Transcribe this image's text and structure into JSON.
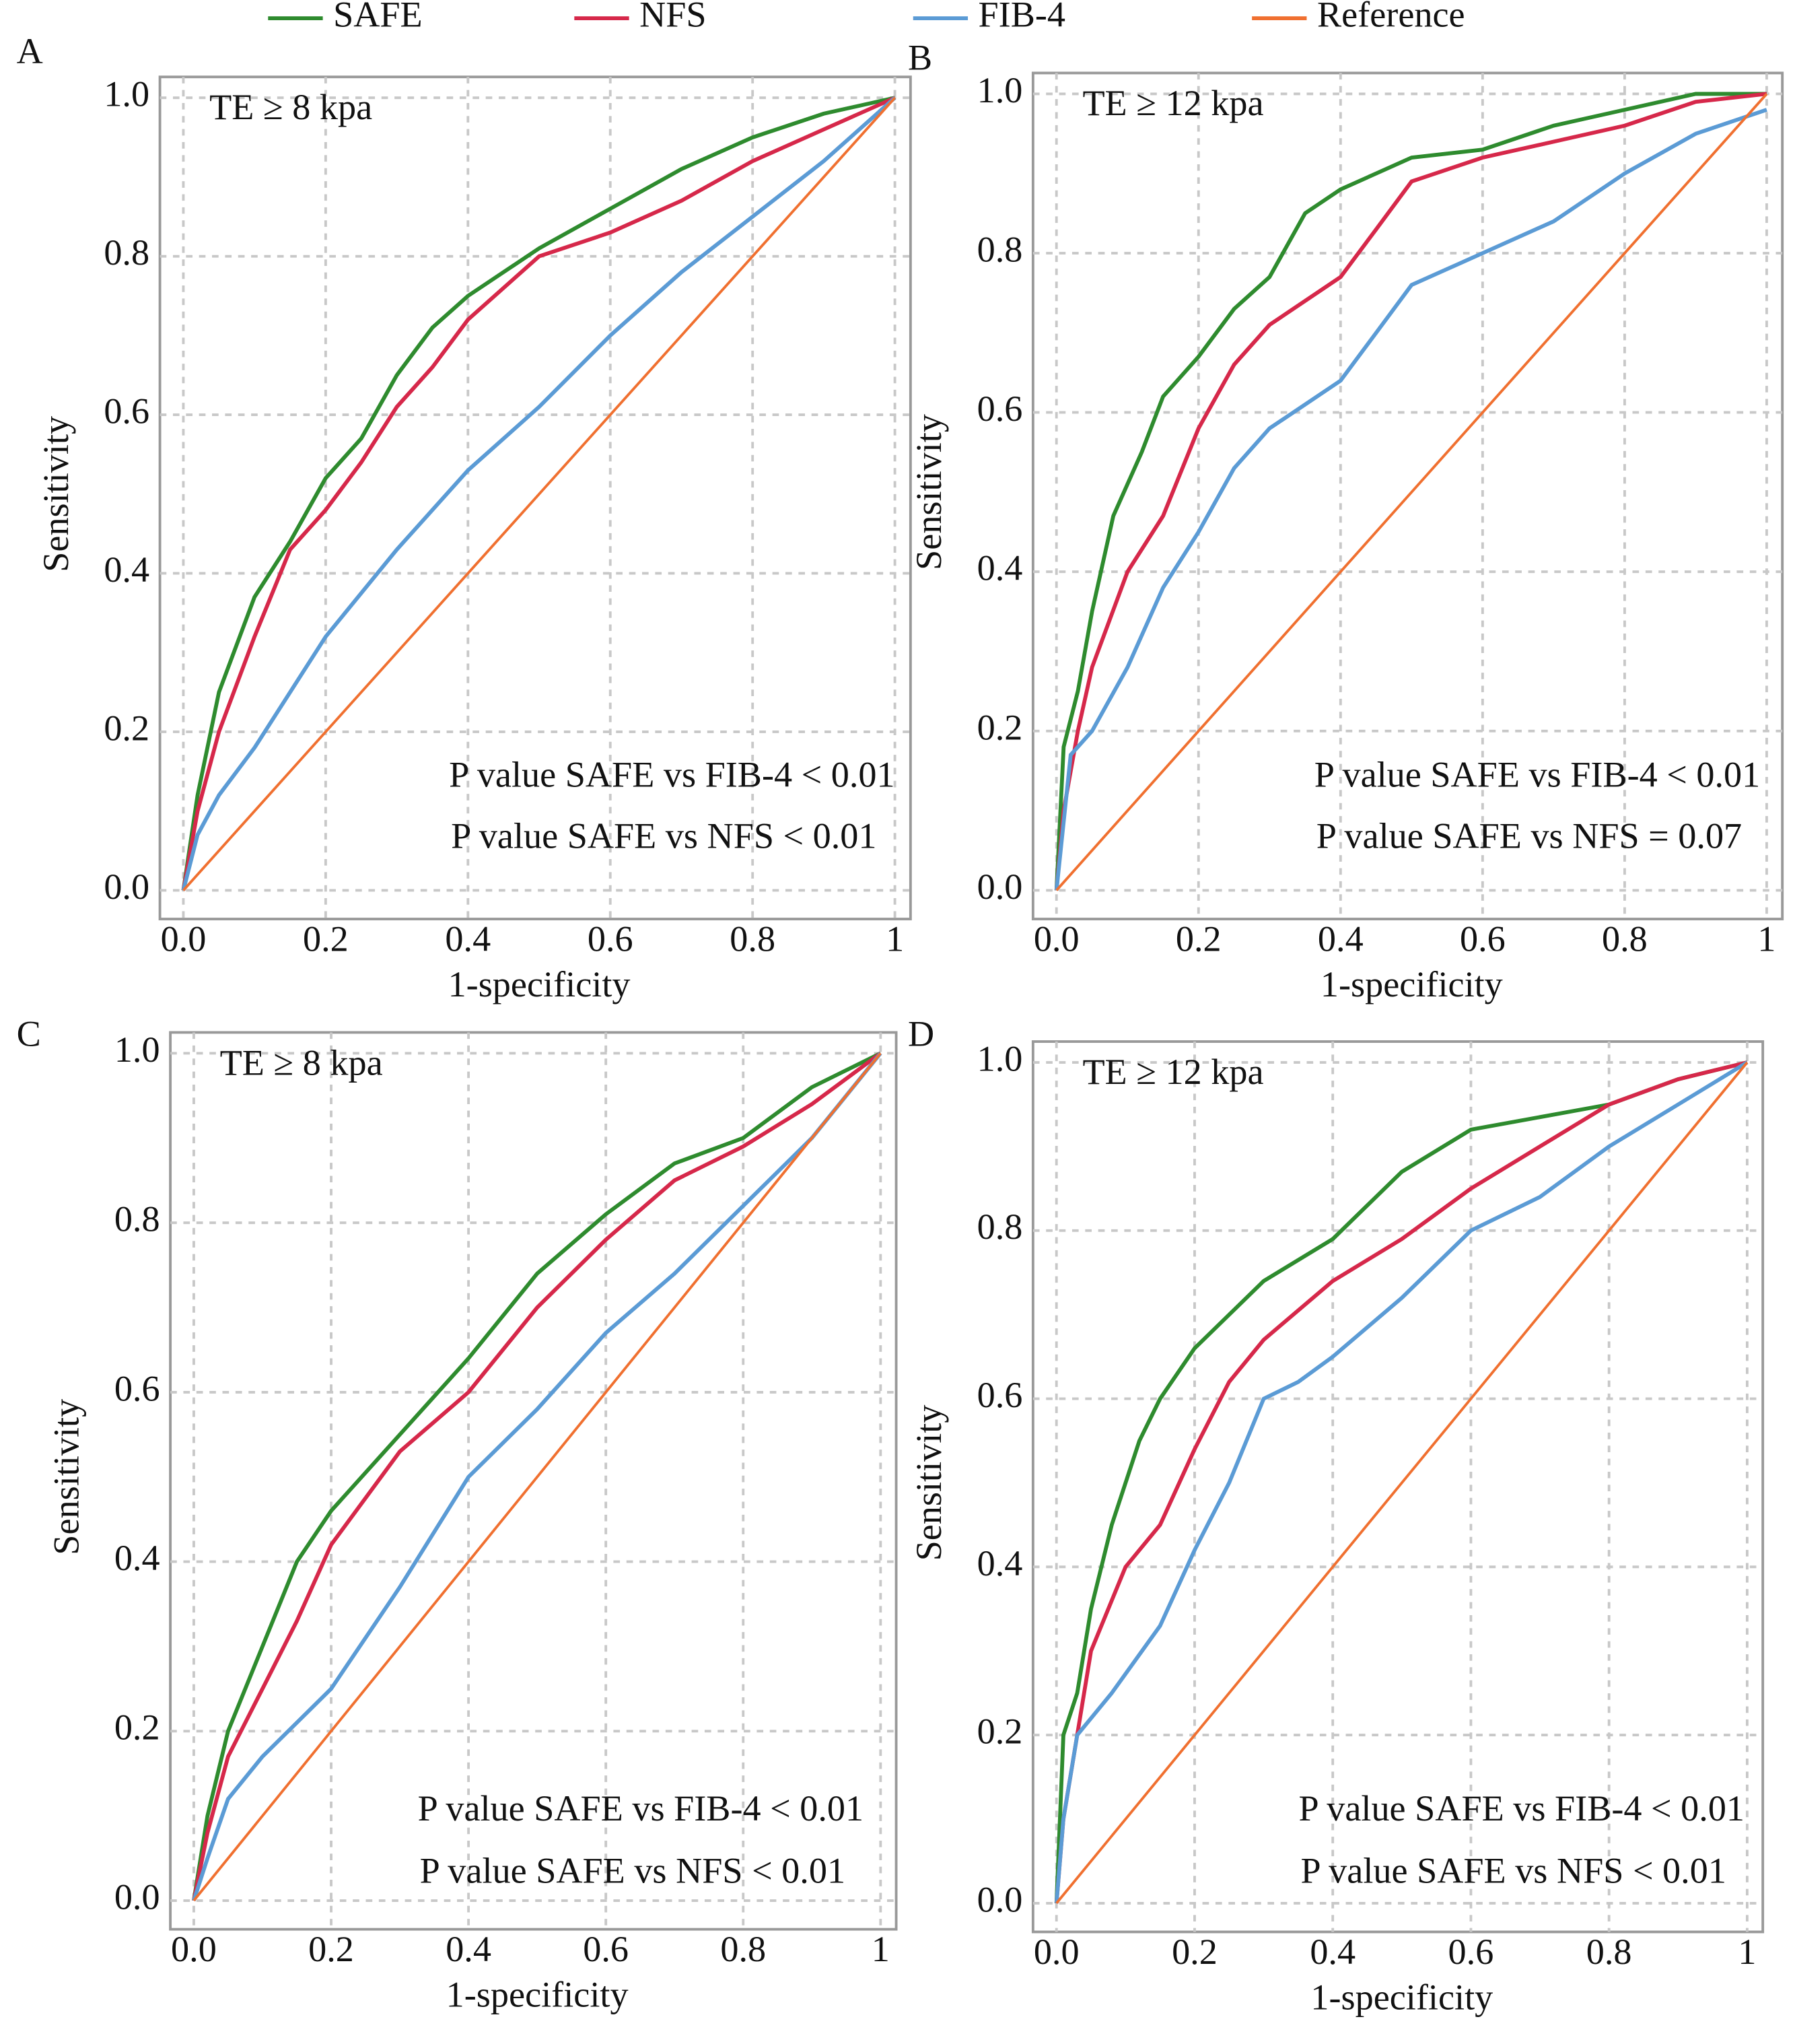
{
  "legend_chart": 0,
  "chart_data": [
    {
      "type": "line",
      "panel_label": "A",
      "x_label": "1-specificity",
      "y_label": "Sensitivity",
      "annotations": [
        "TE ≥ 8 kpa",
        "P value SAFE vs FIB-4 < 0.01",
        "P value SAFE vs NFS < 0.01"
      ],
      "xlim": [
        0,
        1
      ],
      "ylim": [
        0,
        1
      ],
      "grid": true,
      "xticks": [
        {
          "value": 0,
          "label": "0.0"
        },
        0.2,
        0.4,
        0.6,
        0.8,
        1
      ],
      "yticks": [
        {
          "value": 0,
          "label": "0.0"
        },
        0.2,
        0.4,
        0.6,
        0.8,
        {
          "value": 1,
          "label": "1.0"
        }
      ],
      "series": [
        {
          "name": "SAFE",
          "color": "#2e8b2e",
          "x": [
            0,
            0.02,
            0.05,
            0.1,
            0.15,
            0.2,
            0.25,
            0.3,
            0.35,
            0.4,
            0.5,
            0.6,
            0.7,
            0.8,
            0.9,
            1
          ],
          "values": [
            0,
            0.12,
            0.25,
            0.37,
            0.44,
            0.52,
            0.57,
            0.65,
            0.71,
            0.75,
            0.81,
            0.86,
            0.91,
            0.95,
            0.98,
            1
          ]
        },
        {
          "name": "NFS",
          "color": "#d6284a",
          "x": [
            0,
            0.02,
            0.05,
            0.1,
            0.15,
            0.2,
            0.25,
            0.3,
            0.35,
            0.4,
            0.5,
            0.6,
            0.7,
            0.8,
            0.9,
            1
          ],
          "values": [
            0,
            0.1,
            0.2,
            0.32,
            0.43,
            0.48,
            0.54,
            0.61,
            0.66,
            0.72,
            0.8,
            0.83,
            0.87,
            0.92,
            0.96,
            1
          ]
        },
        {
          "name": "FIB-4",
          "color": "#5b9bd5",
          "x": [
            0,
            0.02,
            0.05,
            0.1,
            0.15,
            0.2,
            0.3,
            0.4,
            0.5,
            0.6,
            0.7,
            0.8,
            0.9,
            1
          ],
          "values": [
            0,
            0.07,
            0.12,
            0.18,
            0.25,
            0.32,
            0.43,
            0.53,
            0.61,
            0.7,
            0.78,
            0.85,
            0.92,
            1
          ]
        },
        {
          "name": "Reference",
          "color": "#f07030",
          "x": [
            0,
            1
          ],
          "values": [
            0,
            1
          ]
        }
      ]
    },
    {
      "type": "line",
      "panel_label": "B",
      "x_label": "1-specificity",
      "y_label": "Sensitivity",
      "annotations": [
        "TE ≥ 12 kpa",
        "P value SAFE vs FIB-4 < 0.01",
        "P value SAFE vs NFS = 0.07"
      ],
      "xlim": [
        0,
        1
      ],
      "ylim": [
        0,
        1
      ],
      "grid": true,
      "xticks": [
        {
          "value": 0,
          "label": "0.0"
        },
        0.2,
        0.4,
        0.6,
        0.8,
        1
      ],
      "yticks": [
        {
          "value": 0,
          "label": "0.0"
        },
        0.2,
        0.4,
        0.6,
        0.8,
        {
          "value": 1,
          "label": "1.0"
        }
      ],
      "series": [
        {
          "name": "SAFE",
          "color": "#2e8b2e",
          "x": [
            0,
            0.01,
            0.03,
            0.05,
            0.08,
            0.12,
            0.15,
            0.2,
            0.25,
            0.3,
            0.35,
            0.4,
            0.5,
            0.6,
            0.7,
            0.8,
            0.9,
            1
          ],
          "values": [
            0,
            0.18,
            0.25,
            0.35,
            0.47,
            0.55,
            0.62,
            0.67,
            0.73,
            0.77,
            0.85,
            0.88,
            0.92,
            0.93,
            0.96,
            0.98,
            1,
            1
          ]
        },
        {
          "name": "NFS",
          "color": "#d6284a",
          "x": [
            0,
            0.01,
            0.03,
            0.05,
            0.1,
            0.15,
            0.2,
            0.25,
            0.3,
            0.4,
            0.45,
            0.5,
            0.6,
            0.7,
            0.8,
            0.9,
            1
          ],
          "values": [
            0,
            0.1,
            0.2,
            0.28,
            0.4,
            0.47,
            0.58,
            0.66,
            0.71,
            0.77,
            0.83,
            0.89,
            0.92,
            0.94,
            0.96,
            0.99,
            1
          ]
        },
        {
          "name": "FIB-4",
          "color": "#5b9bd5",
          "x": [
            0,
            0.02,
            0.05,
            0.1,
            0.15,
            0.2,
            0.25,
            0.3,
            0.35,
            0.4,
            0.45,
            0.5,
            0.6,
            0.7,
            0.8,
            0.9,
            1
          ],
          "values": [
            0,
            0.17,
            0.2,
            0.28,
            0.38,
            0.45,
            0.53,
            0.58,
            0.61,
            0.64,
            0.7,
            0.76,
            0.8,
            0.84,
            0.9,
            0.95,
            0.98
          ]
        },
        {
          "name": "Reference",
          "color": "#f07030",
          "x": [
            0,
            1
          ],
          "values": [
            0,
            1
          ]
        }
      ]
    },
    {
      "type": "line",
      "panel_label": "C",
      "x_label": "1-specificity",
      "y_label": "Sensitivity",
      "annotations": [
        "TE ≥ 8 kpa",
        "P value SAFE vs FIB-4 < 0.01",
        "P value SAFE vs NFS < 0.01"
      ],
      "xlim": [
        0,
        1
      ],
      "ylim": [
        0,
        1
      ],
      "grid": true,
      "xticks": [
        {
          "value": 0,
          "label": "0.0"
        },
        0.2,
        0.4,
        0.6,
        0.8,
        1
      ],
      "yticks": [
        {
          "value": 0,
          "label": "0.0"
        },
        0.2,
        0.4,
        0.6,
        0.8,
        {
          "value": 1,
          "label": "1.0"
        }
      ],
      "series": [
        {
          "name": "SAFE",
          "color": "#2e8b2e",
          "x": [
            0,
            0.02,
            0.05,
            0.1,
            0.15,
            0.2,
            0.3,
            0.4,
            0.5,
            0.6,
            0.7,
            0.8,
            0.9,
            1
          ],
          "values": [
            0,
            0.1,
            0.2,
            0.3,
            0.4,
            0.46,
            0.55,
            0.64,
            0.74,
            0.81,
            0.87,
            0.9,
            0.96,
            1
          ]
        },
        {
          "name": "NFS",
          "color": "#d6284a",
          "x": [
            0,
            0.02,
            0.05,
            0.1,
            0.15,
            0.2,
            0.3,
            0.4,
            0.5,
            0.6,
            0.7,
            0.8,
            0.9,
            1
          ],
          "values": [
            0,
            0.08,
            0.17,
            0.25,
            0.33,
            0.42,
            0.53,
            0.6,
            0.7,
            0.78,
            0.85,
            0.89,
            0.94,
            1
          ]
        },
        {
          "name": "FIB-4",
          "color": "#5b9bd5",
          "x": [
            0,
            0.02,
            0.05,
            0.1,
            0.2,
            0.3,
            0.4,
            0.5,
            0.6,
            0.7,
            0.8,
            0.9,
            1
          ],
          "values": [
            0,
            0.05,
            0.12,
            0.17,
            0.25,
            0.37,
            0.5,
            0.58,
            0.67,
            0.74,
            0.82,
            0.9,
            1
          ]
        },
        {
          "name": "Reference",
          "color": "#f07030",
          "x": [
            0,
            1
          ],
          "values": [
            0,
            1
          ]
        }
      ]
    },
    {
      "type": "line",
      "panel_label": "D",
      "x_label": "1-specificity",
      "y_label": "Sensitivity",
      "annotations": [
        "TE ≥ 12 kpa",
        "P value SAFE vs FIB-4 < 0.01",
        "P value SAFE vs NFS < 0.01"
      ],
      "xlim": [
        0,
        1
      ],
      "ylim": [
        0,
        1
      ],
      "grid": true,
      "xticks": [
        {
          "value": 0,
          "label": "0.0"
        },
        0.2,
        0.4,
        0.6,
        0.8,
        1
      ],
      "yticks": [
        {
          "value": 0,
          "label": "0.0"
        },
        0.2,
        0.4,
        0.6,
        0.8,
        {
          "value": 1,
          "label": "1.0"
        }
      ],
      "series": [
        {
          "name": "SAFE",
          "color": "#2e8b2e",
          "x": [
            0,
            0.01,
            0.03,
            0.05,
            0.08,
            0.12,
            0.15,
            0.2,
            0.25,
            0.3,
            0.4,
            0.5,
            0.6,
            0.8,
            0.9,
            1
          ],
          "values": [
            0,
            0.2,
            0.25,
            0.35,
            0.45,
            0.55,
            0.6,
            0.66,
            0.7,
            0.74,
            0.79,
            0.87,
            0.92,
            0.95,
            0.98,
            1
          ]
        },
        {
          "name": "NFS",
          "color": "#d6284a",
          "x": [
            0,
            0.01,
            0.03,
            0.05,
            0.1,
            0.15,
            0.2,
            0.25,
            0.3,
            0.4,
            0.5,
            0.6,
            0.7,
            0.8,
            0.9,
            1
          ],
          "values": [
            0,
            0.1,
            0.2,
            0.3,
            0.4,
            0.45,
            0.54,
            0.62,
            0.67,
            0.74,
            0.79,
            0.85,
            0.9,
            0.95,
            0.98,
            1
          ]
        },
        {
          "name": "FIB-4",
          "color": "#5b9bd5",
          "x": [
            0,
            0.01,
            0.03,
            0.08,
            0.15,
            0.2,
            0.25,
            0.3,
            0.35,
            0.4,
            0.5,
            0.6,
            0.7,
            0.8,
            0.9,
            1
          ],
          "values": [
            0,
            0.1,
            0.2,
            0.25,
            0.33,
            0.42,
            0.5,
            0.6,
            0.62,
            0.65,
            0.72,
            0.8,
            0.84,
            0.9,
            0.95,
            1
          ]
        },
        {
          "name": "Reference",
          "color": "#f07030",
          "x": [
            0,
            1
          ],
          "values": [
            0,
            1
          ]
        }
      ]
    }
  ]
}
